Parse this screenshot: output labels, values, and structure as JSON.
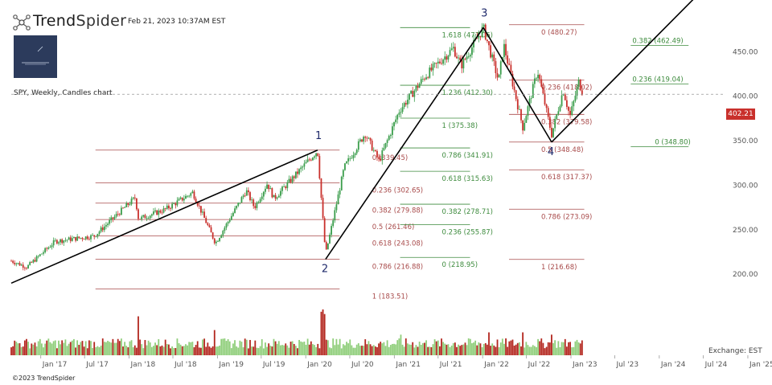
{
  "header": {
    "brand_prefix": "Trend",
    "brand_suffix": "Spider",
    "timestamp": "Feb 21, 2023 10:37AM EST",
    "chart_label": "SPY, Weekly, Candles chart"
  },
  "footer": {
    "copyright": "©2023 TrendSpider",
    "exchange": "Exchange: EST"
  },
  "colors": {
    "up": "#3a9d4b",
    "down": "#c9302c",
    "vol_up": "#8fce7a",
    "vol_down": "#b3261e",
    "fib_red": "#a84a4a",
    "fib_green": "#3d8b3d",
    "trend": "#000000",
    "wave": "#1f2a6b"
  },
  "chart_data": {
    "type": "candlestick",
    "symbol": "SPY",
    "interval": "Weekly",
    "last_price": "402.21",
    "y_ticks": [
      "450.00",
      "400.00",
      "350.00",
      "300.00",
      "250.00",
      "200.00"
    ],
    "ylim": [
      165,
      490
    ],
    "x_ticks": [
      "Jan '17",
      "Jul '17",
      "Jan '18",
      "Jul '18",
      "Jan '19",
      "Jul '19",
      "Jan '20",
      "Jul '20",
      "Jan '21",
      "Jul '21",
      "Jan '22",
      "Jul '22",
      "Jan '23",
      "Jul '23",
      "Jan '24",
      "Jul '24",
      "Jan '25"
    ],
    "xlim": [
      "2016-09-01",
      "2025-02-10"
    ],
    "anchors": [
      {
        "date": "2016-09-01",
        "close": 215
      },
      {
        "date": "2016-11-04",
        "close": 208
      },
      {
        "date": "2017-03-01",
        "close": 237
      },
      {
        "date": "2017-08-10",
        "close": 243
      },
      {
        "date": "2018-01-26",
        "close": 286
      },
      {
        "date": "2018-02-09",
        "close": 262
      },
      {
        "date": "2018-06-01",
        "close": 273
      },
      {
        "date": "2018-09-21",
        "close": 292
      },
      {
        "date": "2018-12-24",
        "close": 235
      },
      {
        "date": "2019-04-30",
        "close": 294
      },
      {
        "date": "2019-06-03",
        "close": 275
      },
      {
        "date": "2019-07-26",
        "close": 302
      },
      {
        "date": "2019-08-23",
        "close": 285
      },
      {
        "date": "2020-02-19",
        "close": 339
      },
      {
        "date": "2020-03-23",
        "close": 222
      },
      {
        "date": "2020-06-08",
        "close": 320
      },
      {
        "date": "2020-09-02",
        "close": 358
      },
      {
        "date": "2020-10-30",
        "close": 327
      },
      {
        "date": "2021-01-22",
        "close": 384
      },
      {
        "date": "2021-05-07",
        "close": 422
      },
      {
        "date": "2021-09-02",
        "close": 454
      },
      {
        "date": "2021-10-04",
        "close": 434
      },
      {
        "date": "2022-01-04",
        "close": 477
      },
      {
        "date": "2022-03-08",
        "close": 417
      },
      {
        "date": "2022-03-29",
        "close": 458
      },
      {
        "date": "2022-06-16",
        "close": 365
      },
      {
        "date": "2022-08-16",
        "close": 429
      },
      {
        "date": "2022-10-13",
        "close": 357
      },
      {
        "date": "2022-11-30",
        "close": 407
      },
      {
        "date": "2022-12-28",
        "close": 377
      },
      {
        "date": "2023-02-02",
        "close": 416
      },
      {
        "date": "2023-02-21",
        "close": 402
      }
    ],
    "waves": [
      {
        "label": "1",
        "date": "2020-02-19",
        "price": 339.45
      },
      {
        "label": "2",
        "date": "2020-03-23",
        "price": 216.88
      },
      {
        "label": "3",
        "date": "2022-01-04",
        "price": 477.06
      },
      {
        "label": "4",
        "date": "2022-10-13",
        "price": 348.48
      }
    ],
    "fib_retracement_1": {
      "x_start": "2017-08-15",
      "x_end": "2020-05-20",
      "color": "red",
      "levels": [
        {
          "level": "0",
          "value": "339.45"
        },
        {
          "level": "0.236",
          "value": "302.65"
        },
        {
          "level": "0.382",
          "value": "279.88"
        },
        {
          "level": "0.5",
          "value": "261.46"
        },
        {
          "level": "0.618",
          "value": "243.08"
        },
        {
          "level": "0.786",
          "value": "216.88"
        },
        {
          "level": "1",
          "value": "183.51"
        }
      ]
    },
    "fib_extension_green": {
      "x_start": "2021-01-25",
      "x_end": "2021-11-10",
      "color": "green",
      "levels": [
        {
          "level": "1.618",
          "value": "477.06"
        },
        {
          "level": "1.236",
          "value": "412.30"
        },
        {
          "level": "1",
          "value": "375.38"
        },
        {
          "level": "0.786",
          "value": "341.91"
        },
        {
          "level": "0.618",
          "value": "315.63"
        },
        {
          "level": "0.382",
          "value": "278.71"
        },
        {
          "level": "0.236",
          "value": "255.87"
        },
        {
          "level": "0",
          "value": "218.95"
        }
      ]
    },
    "fib_retracement_2": {
      "x_start": "2022-04-20",
      "x_end": "2023-02-25",
      "color": "red",
      "levels": [
        {
          "level": "0",
          "value": "480.27"
        },
        {
          "level": "0.236",
          "value": "418.02"
        },
        {
          "level": "0.382",
          "value": "379.58"
        },
        {
          "level": "0.5",
          "value": "348.48"
        },
        {
          "level": "0.618",
          "value": "317.37"
        },
        {
          "level": "0.786",
          "value": "273.09"
        },
        {
          "level": "1",
          "value": "216.68"
        }
      ]
    },
    "fib_projection_green": {
      "x_start": "2023-09-05",
      "x_end": "2024-05-01",
      "color": "green",
      "levels": [
        {
          "level": "0.382",
          "value": "462.49"
        },
        {
          "level": "0.236",
          "value": "419.04"
        },
        {
          "level": "0",
          "value": "348.80"
        }
      ]
    },
    "trendlines": [
      {
        "from": {
          "date": "2016-09-01",
          "price": 190
        },
        "to": {
          "date": "2020-02-19",
          "price": 339.45
        }
      },
      {
        "from": {
          "date": "2020-03-23",
          "price": 216.88
        },
        "to": {
          "date": "2022-01-04",
          "price": 477.06
        }
      },
      {
        "from": {
          "date": "2022-01-04",
          "price": 477.06
        },
        "to": {
          "date": "2022-10-13",
          "price": 348.48
        }
      },
      {
        "from": {
          "date": "2022-10-13",
          "price": 348.48
        },
        "to": {
          "date": "2024-09-15",
          "price": 541
        }
      }
    ],
    "volume_spikes": [
      {
        "date": "2018-02-09",
        "rel": 0.85
      },
      {
        "date": "2018-12-21",
        "rel": 0.55
      },
      {
        "date": "2020-03-06",
        "rel": 0.95
      },
      {
        "date": "2020-03-13",
        "rel": 1.0
      },
      {
        "date": "2020-03-20",
        "rel": 0.9
      },
      {
        "date": "2021-01-29",
        "rel": 0.45
      },
      {
        "date": "2022-01-28",
        "rel": 0.5
      },
      {
        "date": "2022-06-17",
        "rel": 0.5
      },
      {
        "date": "2022-10-14",
        "rel": 0.45
      }
    ]
  }
}
